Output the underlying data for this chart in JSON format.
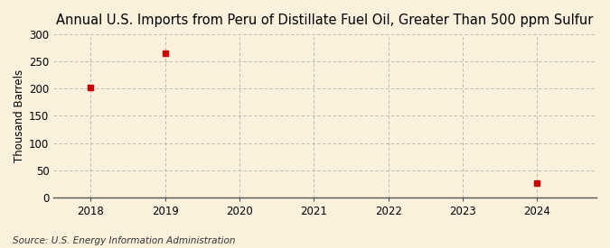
{
  "title": "Annual U.S. Imports from Peru of Distillate Fuel Oil, Greater Than 500 ppm Sulfur",
  "ylabel": "Thousand Barrels",
  "source": "Source: U.S. Energy Information Administration",
  "x_data": [
    2018,
    2019,
    2024
  ],
  "y_data": [
    203,
    265,
    26
  ],
  "marker_color": "#cc0000",
  "marker_size": 4,
  "xlim": [
    2017.5,
    2024.8
  ],
  "ylim": [
    0,
    300
  ],
  "yticks": [
    0,
    50,
    100,
    150,
    200,
    250,
    300
  ],
  "xticks": [
    2018,
    2019,
    2020,
    2021,
    2022,
    2023,
    2024
  ],
  "background_color": "#faf0dc",
  "grid_color": "#aaaaaa",
  "title_fontsize": 10.5,
  "label_fontsize": 8.5,
  "tick_fontsize": 8.5,
  "source_fontsize": 7.5
}
